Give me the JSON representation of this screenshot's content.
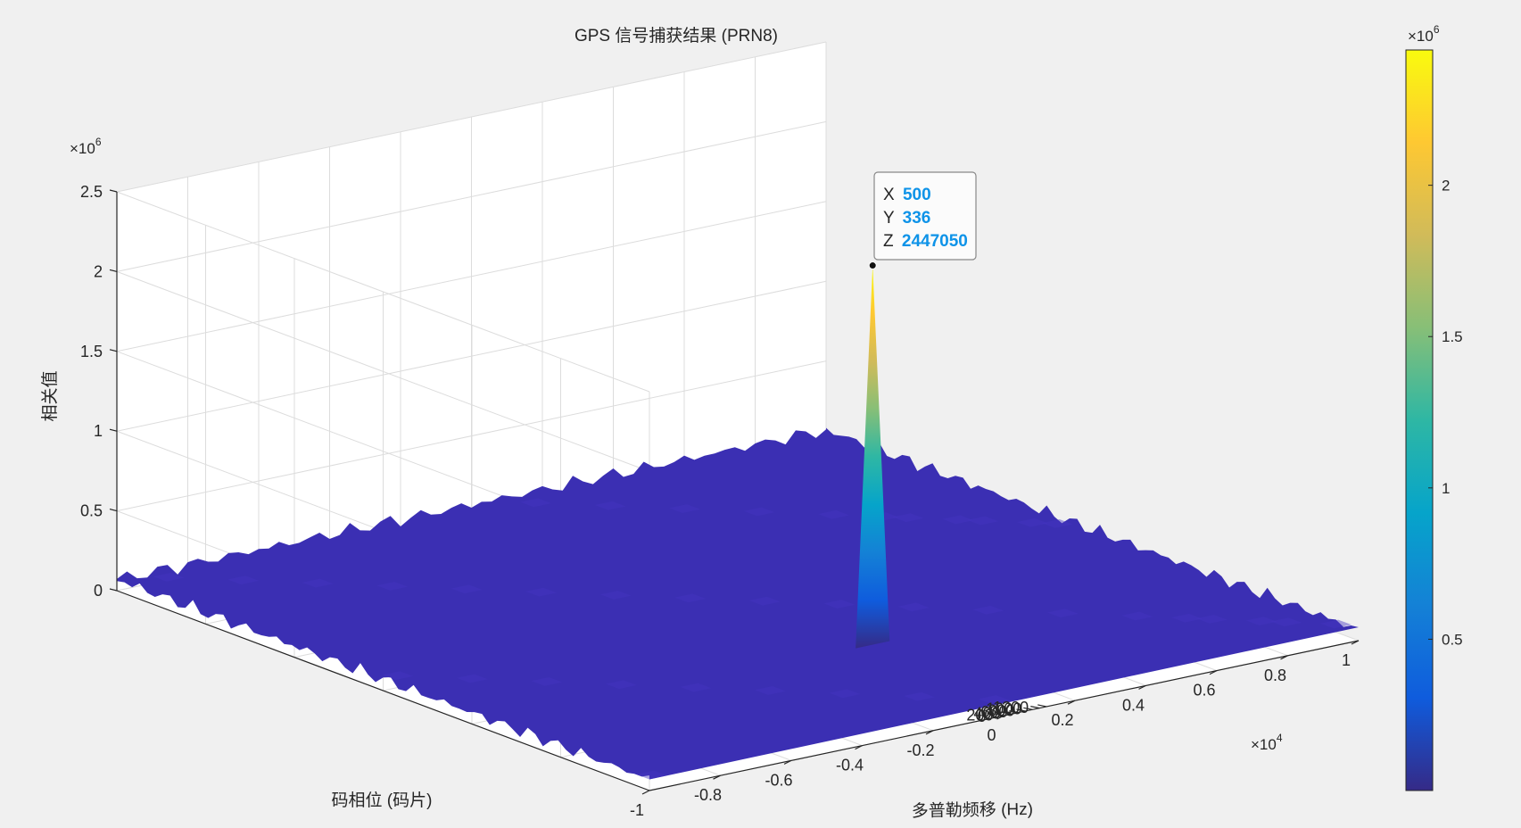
{
  "chart_data": {
    "type": "surface3d",
    "title": "GPS 信号捕获结果 (PRN8)",
    "xlabel": "多普勒频移 (Hz)",
    "ylabel": "码相位 (码片)",
    "zlabel": "相关值",
    "x_multiplier": "×10",
    "x_exponent": "4",
    "z_multiplier": "×10",
    "z_exponent": "6",
    "cbar_multiplier": "×10",
    "cbar_exponent": "6",
    "xlim": [
      -10000,
      10000
    ],
    "ylim": [
      0,
      1200
    ],
    "zlim": [
      0,
      2500000
    ],
    "x_ticks": [
      {
        "value": -10000,
        "label": "-1"
      },
      {
        "value": -8000,
        "label": "-0.8"
      },
      {
        "value": -6000,
        "label": "-0.6"
      },
      {
        "value": -4000,
        "label": "-0.4"
      },
      {
        "value": -2000,
        "label": "-0.2"
      },
      {
        "value": 0,
        "label": "0"
      },
      {
        "value": 2000,
        "label": "0.2"
      },
      {
        "value": 4000,
        "label": "0.4"
      },
      {
        "value": 6000,
        "label": "0.6"
      },
      {
        "value": 8000,
        "label": "0.8"
      },
      {
        "value": 10000,
        "label": "1"
      }
    ],
    "y_ticks": [
      {
        "value": 0,
        "label": "0"
      },
      {
        "value": 200,
        "label": "200"
      },
      {
        "value": 400,
        "label": "400"
      },
      {
        "value": 600,
        "label": "600"
      },
      {
        "value": 800,
        "label": "800"
      },
      {
        "value": 1000,
        "label": "1000"
      },
      {
        "value": 1200,
        "label": "1200"
      }
    ],
    "z_ticks": [
      {
        "value": 0,
        "label": "0"
      },
      {
        "value": 500000,
        "label": "0.5"
      },
      {
        "value": 1000000,
        "label": "1"
      },
      {
        "value": 1500000,
        "label": "1.5"
      },
      {
        "value": 2000000,
        "label": "2"
      },
      {
        "value": 2500000,
        "label": "2.5"
      }
    ],
    "cbar_range": [
      0,
      2447050
    ],
    "cbar_ticks": [
      {
        "value": 500000,
        "label": "0.5"
      },
      {
        "value": 1000000,
        "label": "1"
      },
      {
        "value": 1500000,
        "label": "1.5"
      },
      {
        "value": 2000000,
        "label": "2"
      }
    ],
    "noise_floor": 70000,
    "peak": {
      "x": 500,
      "y": 336,
      "z": 2447050
    },
    "datatip": {
      "x_label": "X",
      "x_value": "500",
      "y_label": "Y",
      "y_value": "336",
      "z_label": "Z",
      "z_value": "2447050"
    },
    "colormap": "parula",
    "grid": true
  },
  "colors": {
    "background": "#f0f0f0",
    "axes_bg": "#ffffff",
    "grid": "#dcdcdc",
    "axis_line": "#262626",
    "text": "#262626",
    "surface_floor": "#3b2fb3",
    "datatip_value": "#0e93e8"
  }
}
